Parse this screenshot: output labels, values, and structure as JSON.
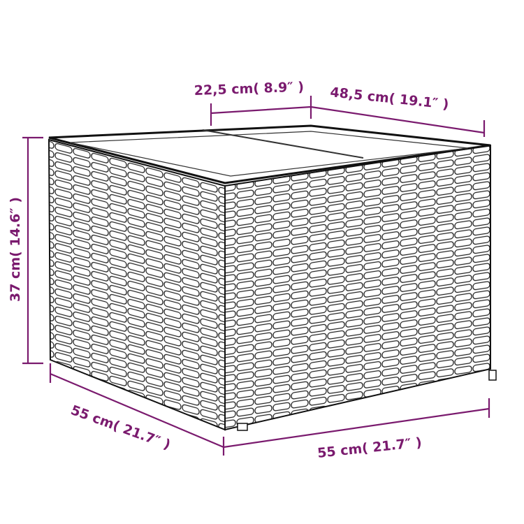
{
  "colors": {
    "dimension": "#7a1a6e",
    "outline": "#1a1a1a",
    "background": "#ffffff"
  },
  "dimensions": {
    "top_left": "22,5 cm( 8.9″ )",
    "top_right": "48,5 cm( 19.1″ )",
    "height": "37 cm( 14.6″ )",
    "depth": "55 cm( 21.7″ )",
    "width": "55 cm( 21.7″ )"
  }
}
